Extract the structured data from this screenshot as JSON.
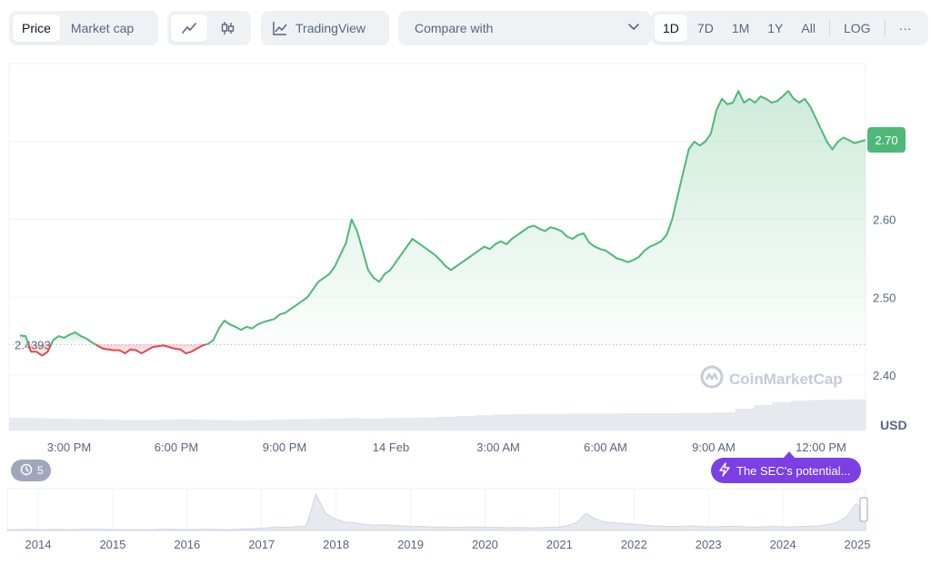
{
  "toolbar": {
    "metric_tabs": [
      "Price",
      "Market cap"
    ],
    "active_metric": "Price",
    "chart_types": [
      {
        "icon": "line-chart-icon",
        "active": true
      },
      {
        "icon": "candlestick-icon",
        "active": false
      }
    ],
    "tradingview_label": "TradingView",
    "compare_placeholder": "Compare with",
    "ranges": [
      "1D",
      "7D",
      "1M",
      "1Y",
      "All"
    ],
    "active_range": "1D",
    "log_label": "LOG",
    "more_label": "···"
  },
  "chart_data": {
    "type": "line",
    "currency": "USD",
    "y_ticks": [
      "2.70",
      "2.60",
      "2.50",
      "2.40"
    ],
    "x_ticks": [
      "3:00 PM",
      "6:00 PM",
      "9:00 PM",
      "14 Feb",
      "3:00 AM",
      "6:00 AM",
      "9:00 AM",
      "12:00 PM"
    ],
    "reference_price": "2.4393",
    "current_price": "2.70",
    "colors": {
      "up": "#4fb879",
      "down": "#e0484f"
    },
    "price_series": [
      2.451,
      2.45,
      2.43,
      2.43,
      2.425,
      2.43,
      2.445,
      2.45,
      2.448,
      2.452,
      2.455,
      2.45,
      2.447,
      2.442,
      2.438,
      2.434,
      2.433,
      2.432,
      2.432,
      2.428,
      2.433,
      2.432,
      2.428,
      2.432,
      2.436,
      2.437,
      2.438,
      2.436,
      2.434,
      2.433,
      2.428,
      2.43,
      2.434,
      2.438,
      2.44,
      2.445,
      2.46,
      2.47,
      2.465,
      2.462,
      2.458,
      2.462,
      2.46,
      2.465,
      2.468,
      2.47,
      2.472,
      2.478,
      2.48,
      2.485,
      2.49,
      2.495,
      2.5,
      2.51,
      2.52,
      2.525,
      2.53,
      2.54,
      2.555,
      2.57,
      2.6,
      2.585,
      2.56,
      2.535,
      2.525,
      2.52,
      2.53,
      2.535,
      2.545,
      2.555,
      2.565,
      2.575,
      2.57,
      2.565,
      2.56,
      2.555,
      2.548,
      2.54,
      2.535,
      2.54,
      2.545,
      2.55,
      2.555,
      2.56,
      2.565,
      2.562,
      2.568,
      2.572,
      2.568,
      2.575,
      2.58,
      2.585,
      2.59,
      2.592,
      2.588,
      2.585,
      2.59,
      2.588,
      2.585,
      2.578,
      2.575,
      2.58,
      2.582,
      2.57,
      2.565,
      2.562,
      2.56,
      2.555,
      2.55,
      2.548,
      2.545,
      2.548,
      2.552,
      2.56,
      2.565,
      2.568,
      2.572,
      2.58,
      2.6,
      2.63,
      2.66,
      2.69,
      2.7,
      2.695,
      2.7,
      2.71,
      2.74,
      2.755,
      2.748,
      2.75,
      2.765,
      2.75,
      2.755,
      2.75,
      2.758,
      2.755,
      2.75,
      2.752,
      2.758,
      2.765,
      2.755,
      2.75,
      2.755,
      2.745,
      2.73,
      2.715,
      2.7,
      2.69,
      2.7,
      2.705,
      2.702,
      2.698,
      2.7,
      2.702
    ],
    "volume_series": [
      0.35,
      0.34,
      0.33,
      0.32,
      0.31,
      0.3,
      0.29,
      0.29,
      0.3,
      0.31,
      0.3,
      0.29,
      0.28,
      0.29,
      0.3,
      0.31,
      0.32,
      0.33,
      0.34,
      0.33,
      0.34,
      0.35,
      0.36,
      0.38,
      0.4,
      0.42,
      0.44,
      0.45,
      0.46,
      0.46,
      0.47,
      0.47,
      0.47,
      0.48,
      0.48,
      0.48,
      0.49,
      0.49,
      0.5,
      0.6,
      0.7,
      0.78,
      0.82,
      0.84,
      0.85,
      0.86
    ],
    "history_years": [
      "2014",
      "2015",
      "2016",
      "2017",
      "2018",
      "2019",
      "2020",
      "2021",
      "2022",
      "2023",
      "2024",
      "2025"
    ],
    "history_series": [
      0.02,
      0.02,
      0.03,
      0.02,
      0.02,
      0.03,
      0.02,
      0.02,
      0.03,
      0.03,
      0.03,
      0.02,
      0.02,
      0.02,
      0.02,
      0.02,
      0.03,
      0.03,
      0.02,
      0.02,
      0.03,
      0.03,
      0.02,
      0.02,
      0.03,
      0.04,
      0.05,
      0.07,
      0.09,
      0.08,
      0.1,
      0.12,
      0.95,
      0.45,
      0.3,
      0.22,
      0.2,
      0.16,
      0.14,
      0.15,
      0.13,
      0.12,
      0.1,
      0.1,
      0.09,
      0.09,
      0.08,
      0.08,
      0.09,
      0.09,
      0.08,
      0.08,
      0.07,
      0.08,
      0.07,
      0.07,
      0.08,
      0.08,
      0.12,
      0.2,
      0.45,
      0.3,
      0.22,
      0.2,
      0.18,
      0.16,
      0.14,
      0.12,
      0.11,
      0.1,
      0.11,
      0.12,
      0.1,
      0.09,
      0.1,
      0.11,
      0.1,
      0.09,
      0.09,
      0.1,
      0.1,
      0.09,
      0.1,
      0.11,
      0.12,
      0.15,
      0.2,
      0.35,
      0.7,
      0.5
    ]
  },
  "watermark": "CoinMarketCap",
  "events": {
    "count": "5",
    "icon": "history-icon"
  },
  "news": {
    "text": "The SEC's potential...",
    "icon": "lightning-icon"
  }
}
